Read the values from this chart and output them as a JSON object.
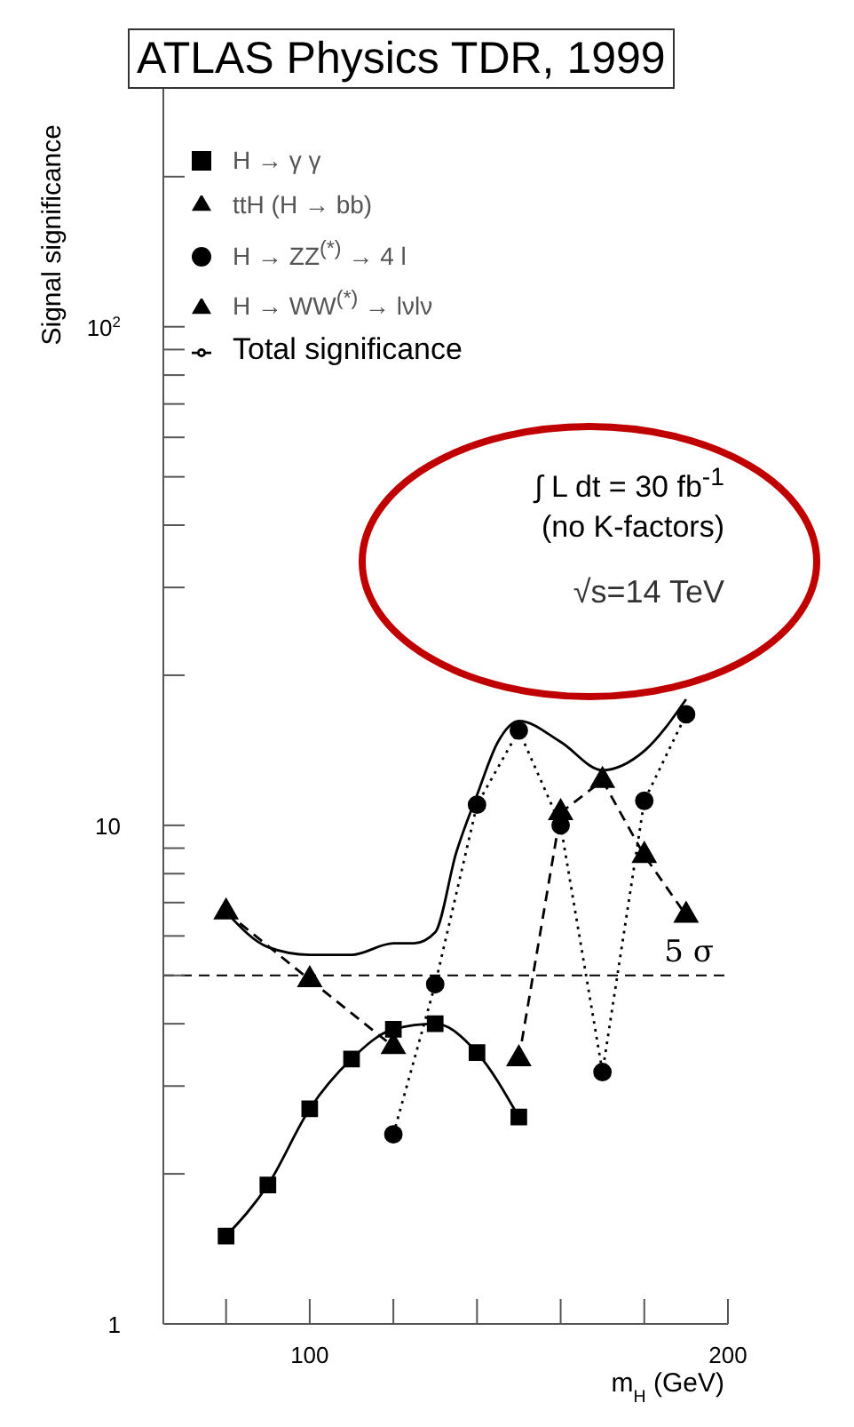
{
  "chart_data": {
    "type": "line",
    "title": "ATLAS Physics TDR, 1999",
    "xlabel": "m$_{H}$ (GeV)",
    "ylabel": "Signal significance",
    "log": "y",
    "xlim": [
      65,
      200
    ],
    "ylim": [
      1,
      300
    ],
    "xticks": [
      {
        "value": 80,
        "label": null
      },
      100,
      {
        "value": 120,
        "label": null
      },
      {
        "value": 140,
        "label": null
      },
      {
        "value": 160,
        "label": null
      },
      {
        "value": 180,
        "label": null
      },
      200
    ],
    "yticks": [
      1,
      {
        "value": 2,
        "label": null
      },
      {
        "value": 3,
        "label": null
      },
      {
        "value": 4,
        "label": null
      },
      {
        "value": 5,
        "label": null
      },
      {
        "value": 6,
        "label": null
      },
      {
        "value": 7,
        "label": null
      },
      {
        "value": 8,
        "label": null
      },
      {
        "value": 9,
        "label": null
      },
      10,
      {
        "value": 20,
        "label": null
      },
      {
        "value": 30,
        "label": null
      },
      {
        "value": 40,
        "label": null
      },
      {
        "value": 50,
        "label": null
      },
      {
        "value": 60,
        "label": null
      },
      {
        "value": 70,
        "label": null
      },
      {
        "value": 80,
        "label": null
      },
      {
        "value": 90,
        "label": null
      },
      {
        "value": 100,
        "label": "10$^{2}$"
      },
      {
        "value": 200,
        "label": null
      }
    ],
    "legend": "top left",
    "series": [
      {
        "name": "H → γ γ",
        "color": "#000000",
        "marker": "square",
        "line_style": "solid",
        "x": [
          80,
          90,
          100,
          110,
          120,
          130,
          140,
          150
        ],
        "values": [
          1.5,
          1.9,
          2.7,
          3.4,
          3.9,
          4.0,
          3.5,
          2.6
        ]
      },
      {
        "name": "ttH (H → bb)",
        "color": "#000000",
        "marker": "triangle",
        "line_style": "dashed",
        "x": [
          80,
          100,
          120
        ],
        "values": [
          6.7,
          4.9,
          3.6
        ]
      },
      {
        "name": "H → ZZ$^{(*)}$ → 4 l",
        "color": "#000000",
        "marker": "circle",
        "line_style": "dotted",
        "x": [
          120,
          130,
          140,
          150,
          160,
          170,
          180,
          190
        ],
        "values": [
          2.4,
          4.8,
          11,
          15.5,
          10,
          3.2,
          11.2,
          16.7
        ]
      },
      {
        "name": "H → WW$^{(*)}$ → lνlν",
        "color": "#000000",
        "marker": "triangle",
        "line_style": "dashed",
        "x": [
          150,
          160,
          170,
          180,
          190
        ],
        "values": [
          3.4,
          10.6,
          12.3,
          8.7,
          6.6
        ]
      },
      {
        "name": "Total significance",
        "color": "#000000",
        "marker": "none",
        "line_style": "solid",
        "x": [
          80,
          90,
          100,
          110,
          120,
          125,
          130,
          135,
          140,
          145,
          150,
          160,
          170,
          180,
          190
        ],
        "values": [
          6.7,
          5.7,
          5.5,
          5.5,
          5.8,
          5.8,
          6.1,
          8.8,
          11.5,
          14.7,
          16.2,
          14.7,
          12.9,
          14.1,
          17.9
        ]
      }
    ],
    "ref_lines": [
      {
        "axis": "y",
        "value": 5,
        "label": "5 σ",
        "line_style": "dashed",
        "color": "#000000"
      }
    ],
    "annotations": [
      "∫ L dt = 30 fb$^{-1}$",
      "(no K-factors)",
      "√s=14 TeV"
    ]
  }
}
